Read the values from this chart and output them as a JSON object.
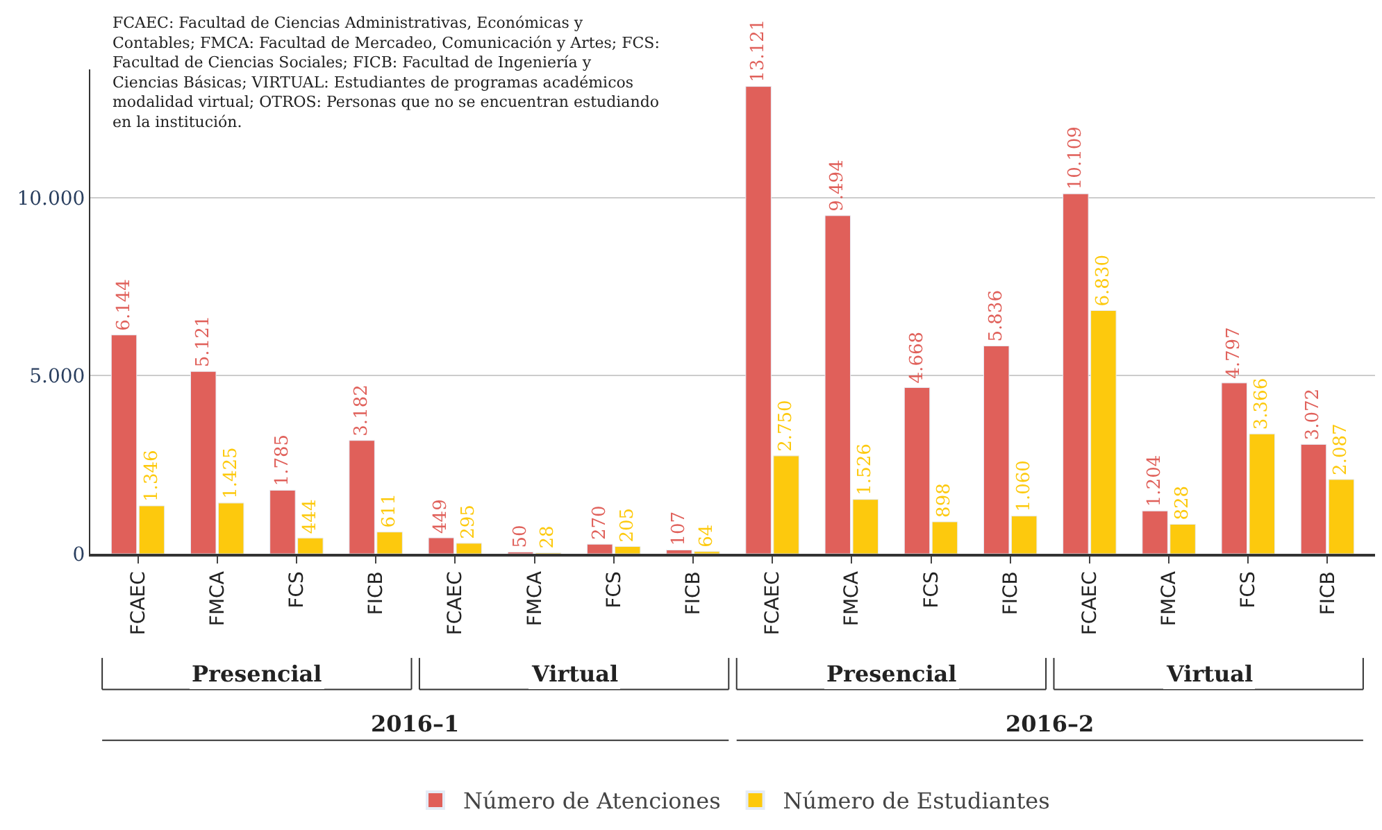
{
  "chart_data": {
    "type": "bar",
    "categories": [
      "FCAEC",
      "FMCA",
      "FCS",
      "FICB",
      "FCAEC",
      "FMCA",
      "FCS",
      "FICB",
      "FCAEC",
      "FMCA",
      "FCS",
      "FICB",
      "FCAEC",
      "FMCA",
      "FCS",
      "FICB"
    ],
    "series": [
      {
        "name": "Número de Atenciones",
        "color": "#e0605a",
        "values": [
          6144,
          5121,
          1785,
          3182,
          449,
          50,
          270,
          107,
          13121,
          9494,
          4668,
          5836,
          10109,
          1204,
          4797,
          3072
        ],
        "value_labels": [
          "6.144",
          "5.121",
          "1.785",
          "3.182",
          "449",
          "50",
          "270",
          "107",
          "13.121",
          "9.494",
          "4.668",
          "5.836",
          "10.109",
          "1.204",
          "4.797",
          "3.072"
        ]
      },
      {
        "name": "Número de Estudiantes",
        "color": "#fdc90d",
        "values": [
          1346,
          1425,
          444,
          611,
          295,
          28,
          205,
          64,
          2750,
          1526,
          898,
          1060,
          6830,
          828,
          3366,
          2087
        ],
        "value_labels": [
          "1.346",
          "1.425",
          "444",
          "611",
          "295",
          "28",
          "205",
          "64",
          "2.750",
          "1.526",
          "898",
          "1.060",
          "6.830",
          "828",
          "3.366",
          "2.087"
        ]
      }
    ],
    "ylim": [
      0,
      13600
    ],
    "yticks": [
      0,
      {
        "value": 5000,
        "label": "5.000"
      },
      {
        "value": 10000,
        "label": "10.000"
      }
    ],
    "grid": "y",
    "legend": "bottom",
    "annotations": [
      "FCAEC: Facultad de Ciencias Administrativas, Económicas y Contables; FMCA: Facultad de Mercadeo, Comunicación y Artes; FCS: Facultad de Ciencias Sociales; FICB: Facultad de Ingeniería y Ciencias Básicas; VIRTUAL: Estudiantes de programas académicos modalidad virtual; OTROS: Personas que no se encuentran estudiando en la institución.",
      "Presencial",
      "Virtual",
      "Presencial",
      "Virtual",
      "2016–1",
      "2016–2"
    ]
  }
}
